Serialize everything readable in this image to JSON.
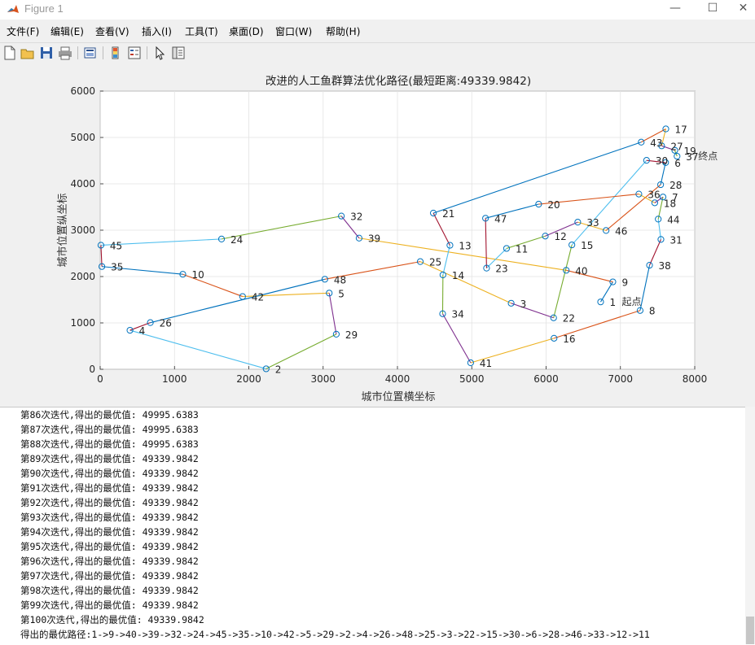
{
  "window": {
    "title": "Figure 1",
    "minimize": "—",
    "maximize": "☐",
    "close": "✕"
  },
  "menu": [
    "文件(F)",
    "编辑(E)",
    "查看(V)",
    "插入(I)",
    "工具(T)",
    "桌面(D)",
    "窗口(W)",
    "帮助(H)"
  ],
  "toolbar_icons": [
    "new-figure-icon",
    "open-file-icon",
    "save-icon",
    "print-icon",
    "print-preview-icon",
    "colorbar-icon",
    "legend-icon",
    "pointer-icon",
    "property-editor-icon"
  ],
  "chart_data": {
    "type": "line",
    "title": "改进的人工鱼群算法优化路径(最短距离:49339.9842)",
    "xlabel": "城市位置横坐标",
    "ylabel": "城市位置纵坐标",
    "xlim": [
      0,
      8000
    ],
    "ylim": [
      0,
      6000
    ],
    "xticks": [
      0,
      1000,
      2000,
      3000,
      4000,
      5000,
      6000,
      7000,
      8000
    ],
    "yticks": [
      0,
      1000,
      2000,
      3000,
      4000,
      5000,
      6000
    ],
    "grid": true,
    "start_label": "起点",
    "end_label": "终点",
    "start_city": "1",
    "end_city": "37",
    "cities": [
      {
        "id": "1",
        "x": 6734,
        "y": 1453
      },
      {
        "id": "2",
        "x": 2233,
        "y": 10
      },
      {
        "id": "3",
        "x": 5530,
        "y": 1424
      },
      {
        "id": "4",
        "x": 401,
        "y": 841
      },
      {
        "id": "5",
        "x": 3082,
        "y": 1644
      },
      {
        "id": "6",
        "x": 7608,
        "y": 4458
      },
      {
        "id": "7",
        "x": 7573,
        "y": 3716
      },
      {
        "id": "8",
        "x": 7265,
        "y": 1268
      },
      {
        "id": "9",
        "x": 6898,
        "y": 1885
      },
      {
        "id": "10",
        "x": 1112,
        "y": 2049
      },
      {
        "id": "11",
        "x": 5468,
        "y": 2606
      },
      {
        "id": "12",
        "x": 5989,
        "y": 2873
      },
      {
        "id": "13",
        "x": 4706,
        "y": 2674
      },
      {
        "id": "14",
        "x": 4612,
        "y": 2035
      },
      {
        "id": "15",
        "x": 6347,
        "y": 2683
      },
      {
        "id": "16",
        "x": 6107,
        "y": 669
      },
      {
        "id": "17",
        "x": 7611,
        "y": 5184
      },
      {
        "id": "18",
        "x": 7462,
        "y": 3590
      },
      {
        "id": "19",
        "x": 7732,
        "y": 4723
      },
      {
        "id": "20",
        "x": 5900,
        "y": 3561
      },
      {
        "id": "21",
        "x": 4483,
        "y": 3369
      },
      {
        "id": "22",
        "x": 6101,
        "y": 1110
      },
      {
        "id": "23",
        "x": 5199,
        "y": 2182
      },
      {
        "id": "24",
        "x": 1633,
        "y": 2809
      },
      {
        "id": "25",
        "x": 4307,
        "y": 2322
      },
      {
        "id": "26",
        "x": 675,
        "y": 1006
      },
      {
        "id": "27",
        "x": 7555,
        "y": 4819
      },
      {
        "id": "28",
        "x": 7541,
        "y": 3981
      },
      {
        "id": "29",
        "x": 3177,
        "y": 756
      },
      {
        "id": "30",
        "x": 7352,
        "y": 4506
      },
      {
        "id": "31",
        "x": 7545,
        "y": 2801
      },
      {
        "id": "32",
        "x": 3245,
        "y": 3305
      },
      {
        "id": "33",
        "x": 6426,
        "y": 3173
      },
      {
        "id": "34",
        "x": 4608,
        "y": 1198
      },
      {
        "id": "35",
        "x": 23,
        "y": 2216
      },
      {
        "id": "36",
        "x": 7248,
        "y": 3779
      },
      {
        "id": "37",
        "x": 7762,
        "y": 4595
      },
      {
        "id": "38",
        "x": 7392,
        "y": 2244
      },
      {
        "id": "39",
        "x": 3484,
        "y": 2829
      },
      {
        "id": "40",
        "x": 6271,
        "y": 2135
      },
      {
        "id": "41",
        "x": 4985,
        "y": 140
      },
      {
        "id": "42",
        "x": 1916,
        "y": 1569
      },
      {
        "id": "43",
        "x": 7280,
        "y": 4899
      },
      {
        "id": "44",
        "x": 7509,
        "y": 3239
      },
      {
        "id": "45",
        "x": 10,
        "y": 2676
      },
      {
        "id": "46",
        "x": 6807,
        "y": 2993
      },
      {
        "id": "47",
        "x": 5185,
        "y": 3258
      },
      {
        "id": "48",
        "x": 3023,
        "y": 1942
      }
    ],
    "route": [
      "1",
      "9",
      "40",
      "39",
      "32",
      "24",
      "45",
      "35",
      "10",
      "42",
      "5",
      "29",
      "2",
      "4",
      "26",
      "48",
      "25",
      "3",
      "22",
      "15",
      "30",
      "6",
      "28",
      "46",
      "33",
      "12",
      "11",
      "23",
      "47",
      "20",
      "36",
      "18",
      "7",
      "44",
      "31",
      "38",
      "8",
      "16",
      "41",
      "34",
      "14",
      "13",
      "21",
      "43",
      "17",
      "27",
      "19",
      "37"
    ]
  },
  "console": {
    "lines": [
      "第86次迭代,得出的最优值: 49995.6383",
      "第87次迭代,得出的最优值: 49995.6383",
      "第88次迭代,得出的最优值: 49995.6383",
      "第89次迭代,得出的最优值: 49339.9842",
      "第90次迭代,得出的最优值: 49339.9842",
      "第91次迭代,得出的最优值: 49339.9842",
      "第92次迭代,得出的最优值: 49339.9842",
      "第93次迭代,得出的最优值: 49339.9842",
      "第94次迭代,得出的最优值: 49339.9842",
      "第95次迭代,得出的最优值: 49339.9842",
      "第96次迭代,得出的最优值: 49339.9842",
      "第97次迭代,得出的最优值: 49339.9842",
      "第98次迭代,得出的最优值: 49339.9842",
      "第99次迭代,得出的最优值: 49339.9842",
      "第100次迭代,得出的最优值: 49339.9842",
      "得出的最优路径:1->9->40->39->32->24->45->35->10->42->5->29->2->4->26->48->25->3->22->15->30->6->28->46->33->12->11"
    ]
  }
}
